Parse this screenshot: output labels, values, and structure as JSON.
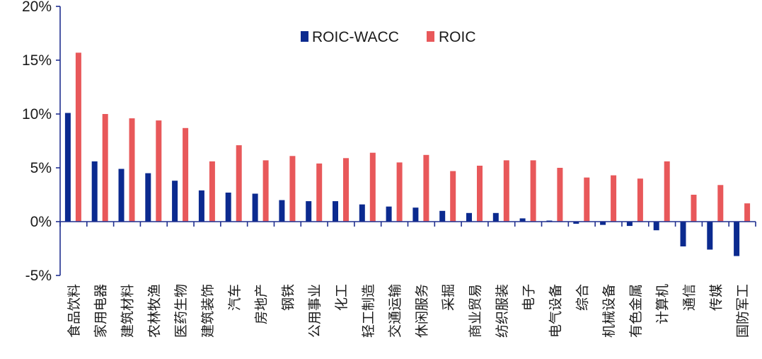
{
  "chart_data": {
    "type": "bar",
    "title": "",
    "xlabel": "",
    "ylabel": "",
    "ylim": [
      -5,
      20
    ],
    "yticks": [
      -5,
      0,
      5,
      10,
      15,
      20
    ],
    "ytick_labels": [
      "-5%",
      "0%",
      "5%",
      "10%",
      "15%",
      "20%"
    ],
    "grid": false,
    "legend_position": "top-center",
    "categories": [
      "食品饮料",
      "家用电器",
      "建筑材料",
      "农林牧渔",
      "医药生物",
      "建筑装饰",
      "汽车",
      "房地产",
      "钢铁",
      "公用事业",
      "化工",
      "轻工制造",
      "交通运输",
      "休闲服务",
      "采掘",
      "商业贸易",
      "纺织服装",
      "电子",
      "电气设备",
      "综合",
      "机械设备",
      "有色金属",
      "计算机",
      "通信",
      "传媒",
      "国防军工"
    ],
    "series": [
      {
        "name": "ROIC-WACC",
        "color": "#0b2a8f",
        "values": [
          10.1,
          5.6,
          4.9,
          4.5,
          3.8,
          2.9,
          2.7,
          2.6,
          2.0,
          1.9,
          1.9,
          1.6,
          1.4,
          1.3,
          1.0,
          0.8,
          0.8,
          0.3,
          0.1,
          -0.2,
          -0.3,
          -0.4,
          -0.8,
          -2.3,
          -2.6,
          -3.2
        ]
      },
      {
        "name": "ROIC",
        "color": "#e8585a",
        "values": [
          15.7,
          10.0,
          9.6,
          9.4,
          8.7,
          5.6,
          7.1,
          5.7,
          6.1,
          5.4,
          5.9,
          6.4,
          5.5,
          6.2,
          4.7,
          5.2,
          5.7,
          5.7,
          5.0,
          4.1,
          4.3,
          4.0,
          5.6,
          2.5,
          3.4,
          1.7
        ]
      }
    ]
  }
}
